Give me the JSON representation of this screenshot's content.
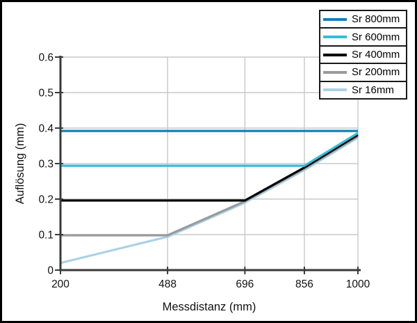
{
  "chart_data": {
    "type": "line",
    "title": "",
    "xlabel": "Messdistanz (mm)",
    "ylabel": "Auflösung (mm)",
    "xlim": [
      200,
      1000
    ],
    "ylim": [
      0,
      0.6
    ],
    "x_ticks": [
      200,
      488,
      696,
      856,
      1000
    ],
    "y_ticks": [
      0,
      0.1,
      0.2,
      0.3,
      0.4,
      0.5,
      0.6
    ],
    "y_tick_labels": [
      "0",
      "0.1",
      "0.2",
      "0.3",
      "0.4",
      "0.5",
      "0.6"
    ],
    "grid": true,
    "legend_position": "top-right",
    "series": [
      {
        "name": "Sr 800mm",
        "color": "#1180b8",
        "points": [
          [
            200,
            0.392
          ],
          [
            1000,
            0.392
          ]
        ]
      },
      {
        "name": "Sr 600mm",
        "color": "#35bdd9",
        "points": [
          [
            200,
            0.294
          ],
          [
            856,
            0.294
          ],
          [
            1000,
            0.386
          ]
        ]
      },
      {
        "name": "Sr 400mm",
        "color": "#000000",
        "points": [
          [
            200,
            0.196
          ],
          [
            696,
            0.196
          ],
          [
            856,
            0.289
          ],
          [
            1000,
            0.381
          ]
        ]
      },
      {
        "name": "Sr 200mm",
        "color": "#9a9a9a",
        "points": [
          [
            200,
            0.098
          ],
          [
            488,
            0.098
          ],
          [
            696,
            0.194
          ],
          [
            856,
            0.286
          ],
          [
            1000,
            0.377
          ]
        ]
      },
      {
        "name": "Sr 16mm",
        "color": "#a9d2e6",
        "points": [
          [
            200,
            0.02
          ],
          [
            488,
            0.094
          ],
          [
            696,
            0.19
          ],
          [
            856,
            0.282
          ],
          [
            1000,
            0.373
          ]
        ]
      }
    ],
    "colors": {
      "grid": "#c8c8c8",
      "axis": "#3a3a3a",
      "tick_text": "#111111",
      "background": "#ffffff",
      "frame_border": "#000000"
    }
  }
}
